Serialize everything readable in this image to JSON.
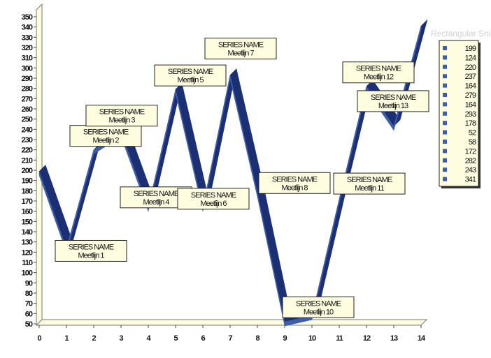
{
  "watermark_text": "Rectangular Snip",
  "chart_data": {
    "type": "line",
    "style": "3d-ribbon",
    "colors": {
      "ribbon_front": "#3f5ea8",
      "ribbon_side": "#1c2f73",
      "label_fill": "#fffde0",
      "wall": "#fffde0"
    },
    "x": [
      0,
      1,
      2,
      3,
      4,
      5,
      6,
      7,
      8,
      9,
      10,
      11,
      12,
      13,
      14
    ],
    "y": [
      199,
      124,
      220,
      237,
      164,
      279,
      164,
      293,
      178,
      52,
      58,
      172,
      282,
      243,
      341
    ],
    "xticks": [
      "0",
      "1",
      "2",
      "3",
      "4",
      "5",
      "6",
      "7",
      "8",
      "9",
      "10",
      "11",
      "12",
      "13",
      "14"
    ],
    "yticks": [
      "50",
      "60",
      "70",
      "80",
      "90",
      "100",
      "110",
      "120",
      "130",
      "140",
      "150",
      "160",
      "170",
      "180",
      "190",
      "200",
      "210",
      "220",
      "230",
      "240",
      "250",
      "260",
      "270",
      "280",
      "290",
      "300",
      "310",
      "320",
      "330",
      "340",
      "350"
    ],
    "ylim": [
      50,
      350
    ],
    "xlim": [
      0,
      14
    ],
    "grid": false,
    "legend": {
      "position": "right",
      "entries": [
        "199",
        "124",
        "220",
        "237",
        "164",
        "279",
        "164",
        "293",
        "178",
        "52",
        "58",
        "172",
        "282",
        "243",
        "341"
      ]
    },
    "annotations": [
      {
        "index": 1,
        "line1": "SERIES NAME",
        "line2": "Meetlijn 1"
      },
      {
        "index": 2,
        "line1": "SERIES NAME",
        "line2": "Meetlijn 2"
      },
      {
        "index": 3,
        "line1": "SERIES NAME",
        "line2": "Meetlijn 3"
      },
      {
        "index": 4,
        "line1": "SERIES NAME",
        "line2": "Meetlijn 4"
      },
      {
        "index": 5,
        "line1": "SERIES NAME",
        "line2": "Meetlijn 5"
      },
      {
        "index": 6,
        "line1": "SERIES NAME",
        "line2": "Meetlijn 6"
      },
      {
        "index": 7,
        "line1": "SERIES NAME",
        "line2": "Meetlijn 7"
      },
      {
        "index": 8,
        "line1": "SERIES NAME",
        "line2": "Meetlijn 8"
      },
      {
        "index": 10,
        "line1": "SERIES NAME",
        "line2": "Meetlijn 10"
      },
      {
        "index": 11,
        "line1": "SERIES NAME",
        "line2": "Meetlijn 11"
      },
      {
        "index": 12,
        "line1": "SERIES NAME",
        "line2": "Meetlijn 12"
      },
      {
        "index": 13,
        "line1": "SERIES NAME",
        "line2": "Meetlijn 13"
      }
    ]
  }
}
